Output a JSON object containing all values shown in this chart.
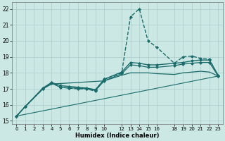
{
  "title": "",
  "xlabel": "Humidex (Indice chaleur)",
  "background_color": "#cce8e4",
  "grid_color": "#aacccc",
  "line_color": "#1a6b6b",
  "xlim": [
    -0.5,
    23.5
  ],
  "ylim": [
    14.8,
    22.4
  ],
  "xticks": [
    0,
    1,
    2,
    3,
    4,
    5,
    6,
    7,
    8,
    9,
    10,
    12,
    13,
    14,
    15,
    16,
    18,
    19,
    20,
    21,
    22,
    23
  ],
  "yticks": [
    15,
    16,
    17,
    18,
    19,
    20,
    21,
    22
  ],
  "lines": [
    {
      "x": [
        0,
        1,
        3,
        4,
        5,
        6,
        7,
        8,
        9,
        10,
        12,
        13,
        14,
        15,
        16,
        18,
        19,
        20,
        21,
        22,
        23
      ],
      "y": [
        15.3,
        15.9,
        17.0,
        17.4,
        17.1,
        17.05,
        17.0,
        17.0,
        16.85,
        17.6,
        18.0,
        21.5,
        22.0,
        20.0,
        19.6,
        18.6,
        19.0,
        19.05,
        18.9,
        18.85,
        17.8
      ],
      "marker": "D",
      "markersize": 2,
      "linewidth": 1.0,
      "linestyle": "--"
    },
    {
      "x": [
        0,
        1,
        3,
        4,
        5,
        6,
        7,
        8,
        9,
        10,
        12,
        13,
        14,
        15,
        16,
        18,
        19,
        20,
        21,
        22,
        23
      ],
      "y": [
        15.3,
        15.9,
        17.05,
        17.4,
        17.2,
        17.15,
        17.1,
        17.05,
        16.95,
        17.6,
        18.05,
        18.65,
        18.6,
        18.5,
        18.5,
        18.6,
        18.65,
        18.75,
        18.8,
        18.8,
        17.85
      ],
      "marker": "D",
      "markersize": 2,
      "linewidth": 1.0,
      "linestyle": "-"
    },
    {
      "x": [
        0,
        1,
        3,
        4,
        5,
        6,
        7,
        8,
        9,
        10,
        12,
        13,
        14,
        15,
        16,
        18,
        19,
        20,
        21,
        22,
        23
      ],
      "y": [
        15.3,
        15.9,
        17.0,
        17.35,
        17.1,
        17.05,
        17.05,
        17.0,
        16.9,
        17.5,
        17.95,
        18.5,
        18.45,
        18.35,
        18.35,
        18.45,
        18.55,
        18.6,
        18.65,
        18.65,
        17.8
      ],
      "marker": "D",
      "markersize": 2,
      "linewidth": 0.9,
      "linestyle": "-"
    },
    {
      "x": [
        0,
        1,
        3,
        4,
        10,
        12,
        13,
        14,
        15,
        16,
        18,
        19,
        20,
        21,
        22,
        23
      ],
      "y": [
        15.3,
        15.9,
        17.0,
        17.3,
        17.5,
        17.85,
        18.0,
        18.0,
        18.0,
        17.95,
        17.9,
        18.0,
        18.05,
        18.1,
        18.05,
        17.8
      ],
      "marker": null,
      "markersize": 0,
      "linewidth": 0.9,
      "linestyle": "-"
    },
    {
      "x": [
        0,
        23
      ],
      "y": [
        15.3,
        17.8
      ],
      "marker": null,
      "markersize": 0,
      "linewidth": 0.8,
      "linestyle": "-"
    }
  ]
}
